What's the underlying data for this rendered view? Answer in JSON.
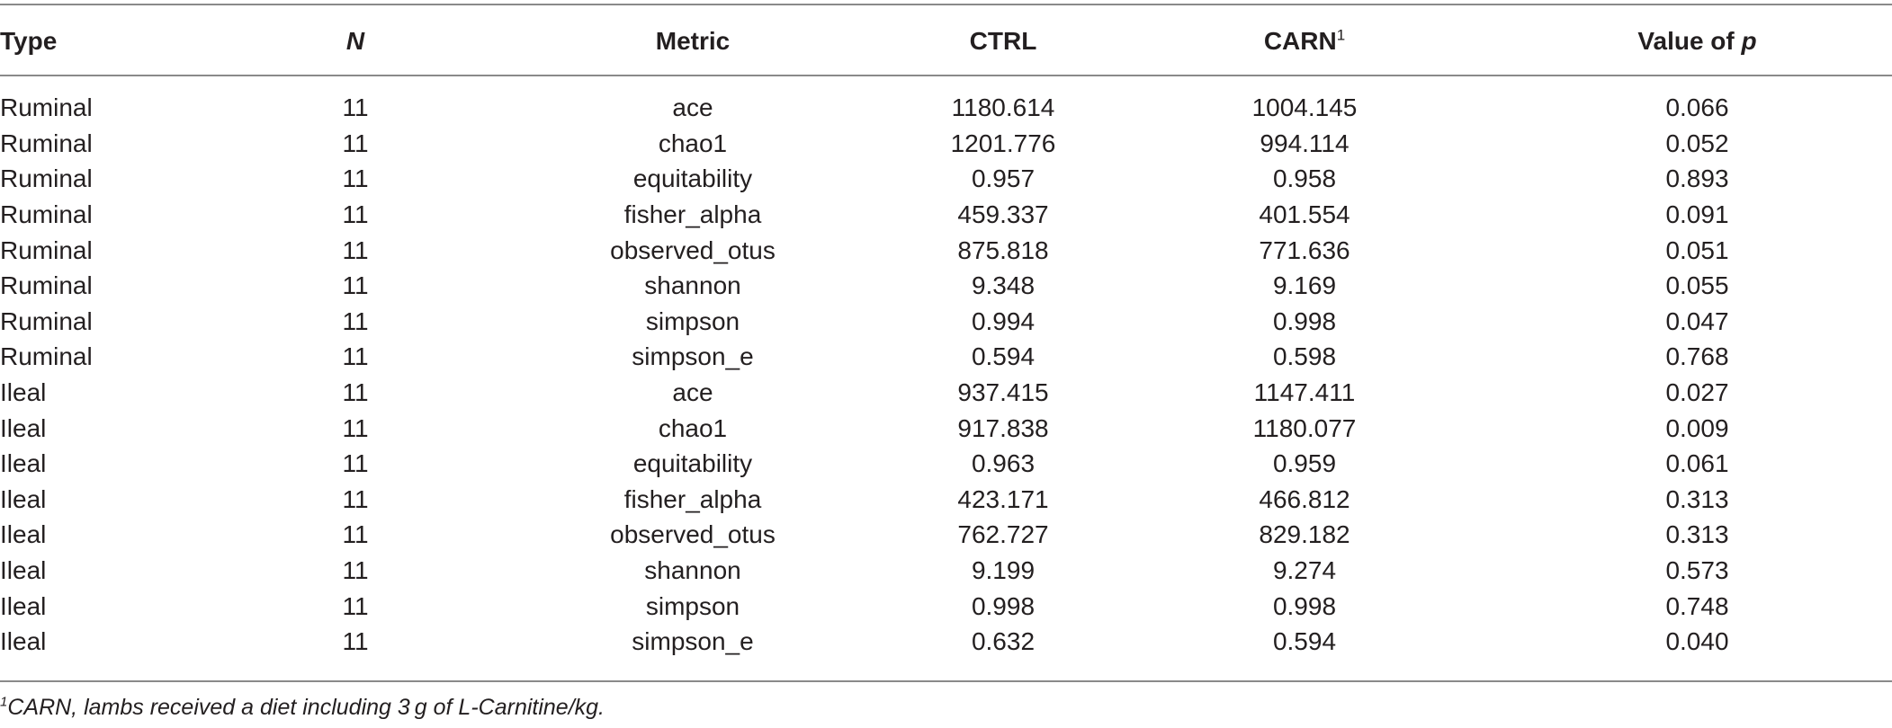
{
  "table": {
    "headers": {
      "type": "Type",
      "n": "N",
      "metric": "Metric",
      "ctrl": "CTRL",
      "carn": "CARN",
      "carn_sup": "1",
      "pvalue_prefix": "Value of ",
      "pvalue_p": "p"
    },
    "rows": [
      {
        "type": "Ruminal",
        "n": "11",
        "metric": "ace",
        "ctrl": "1180.614",
        "carn": "1004.145",
        "p": "0.066"
      },
      {
        "type": "Ruminal",
        "n": "11",
        "metric": "chao1",
        "ctrl": "1201.776",
        "carn": "994.114",
        "p": "0.052"
      },
      {
        "type": "Ruminal",
        "n": "11",
        "metric": "equitability",
        "ctrl": "0.957",
        "carn": "0.958",
        "p": "0.893"
      },
      {
        "type": "Ruminal",
        "n": "11",
        "metric": "fisher_alpha",
        "ctrl": "459.337",
        "carn": "401.554",
        "p": "0.091"
      },
      {
        "type": "Ruminal",
        "n": "11",
        "metric": "observed_otus",
        "ctrl": "875.818",
        "carn": "771.636",
        "p": "0.051"
      },
      {
        "type": "Ruminal",
        "n": "11",
        "metric": "shannon",
        "ctrl": "9.348",
        "carn": "9.169",
        "p": "0.055"
      },
      {
        "type": "Ruminal",
        "n": "11",
        "metric": "simpson",
        "ctrl": "0.994",
        "carn": "0.998",
        "p": "0.047"
      },
      {
        "type": "Ruminal",
        "n": "11",
        "metric": "simpson_e",
        "ctrl": "0.594",
        "carn": "0.598",
        "p": "0.768"
      },
      {
        "type": "Ileal",
        "n": "11",
        "metric": "ace",
        "ctrl": "937.415",
        "carn": "1147.411",
        "p": "0.027"
      },
      {
        "type": "Ileal",
        "n": "11",
        "metric": "chao1",
        "ctrl": "917.838",
        "carn": "1180.077",
        "p": "0.009"
      },
      {
        "type": "Ileal",
        "n": "11",
        "metric": "equitability",
        "ctrl": "0.963",
        "carn": "0.959",
        "p": "0.061"
      },
      {
        "type": "Ileal",
        "n": "11",
        "metric": "fisher_alpha",
        "ctrl": "423.171",
        "carn": "466.812",
        "p": "0.313"
      },
      {
        "type": "Ileal",
        "n": "11",
        "metric": "observed_otus",
        "ctrl": "762.727",
        "carn": "829.182",
        "p": "0.313"
      },
      {
        "type": "Ileal",
        "n": "11",
        "metric": "shannon",
        "ctrl": "9.199",
        "carn": "9.274",
        "p": "0.573"
      },
      {
        "type": "Ileal",
        "n": "11",
        "metric": "simpson",
        "ctrl": "0.998",
        "carn": "0.998",
        "p": "0.748"
      },
      {
        "type": "Ileal",
        "n": "11",
        "metric": "simpson_e",
        "ctrl": "0.632",
        "carn": "0.594",
        "p": "0.040"
      }
    ]
  },
  "footnote": {
    "marker": "1",
    "text": "CARN, lambs received a diet including 3 g of L-Carnitine/kg."
  }
}
